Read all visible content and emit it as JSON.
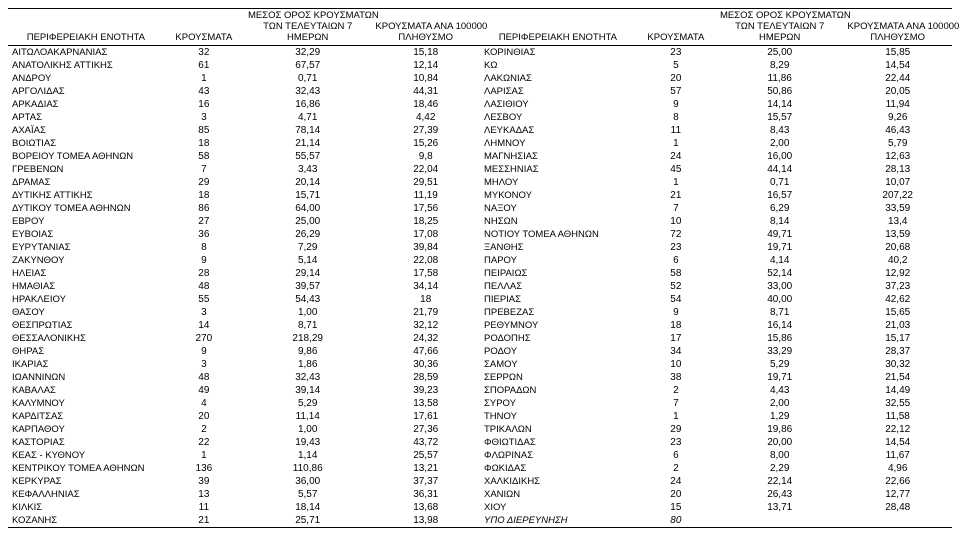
{
  "headers": {
    "region": "ΠΕΡΙΦΕΡΕΙΑΚΗ ΕΝΟΤΗΤΑ",
    "cases": "ΚΡΟΥΣΜΑΤΑ",
    "avg7": "ΜΕΣΟΣ ΟΡΟΣ ΚΡΟΥΣΜΑΤΩΝ ΤΩΝ ΤΕΛΕΥΤΑΙΩΝ 7 ΗΜΕΡΩΝ",
    "per100k": "ΚΡΟΥΣΜΑΤΑ ΑΝΑ 100000 ΠΛΗΘΥΣΜΟ"
  },
  "left": [
    {
      "n": "ΑΙΤΩΛΟΑΚΑΡΝΑΝΙΑΣ",
      "c": "32",
      "a": "32,29",
      "p": "15,18"
    },
    {
      "n": "ΑΝΑΤΟΛΙΚΗΣ ΑΤΤΙΚΗΣ",
      "c": "61",
      "a": "67,57",
      "p": "12,14"
    },
    {
      "n": "ΑΝΔΡΟΥ",
      "c": "1",
      "a": "0,71",
      "p": "10,84"
    },
    {
      "n": "ΑΡΓΟΛΙΔΑΣ",
      "c": "43",
      "a": "32,43",
      "p": "44,31"
    },
    {
      "n": "ΑΡΚΑΔΙΑΣ",
      "c": "16",
      "a": "16,86",
      "p": "18,46"
    },
    {
      "n": "ΑΡΤΑΣ",
      "c": "3",
      "a": "4,71",
      "p": "4,42"
    },
    {
      "n": "ΑΧΑΪΑΣ",
      "c": "85",
      "a": "78,14",
      "p": "27,39"
    },
    {
      "n": "ΒΟΙΩΤΙΑΣ",
      "c": "18",
      "a": "21,14",
      "p": "15,26"
    },
    {
      "n": "ΒΟΡΕΙΟΥ ΤΟΜΕΑ ΑΘΗΝΩΝ",
      "c": "58",
      "a": "55,57",
      "p": "9,8"
    },
    {
      "n": "ΓΡΕΒΕΝΩΝ",
      "c": "7",
      "a": "3,43",
      "p": "22,04"
    },
    {
      "n": "ΔΡΑΜΑΣ",
      "c": "29",
      "a": "20,14",
      "p": "29,51"
    },
    {
      "n": "ΔΥΤΙΚΗΣ ΑΤΤΙΚΗΣ",
      "c": "18",
      "a": "15,71",
      "p": "11,19"
    },
    {
      "n": "ΔΥΤΙΚΟΥ ΤΟΜΕΑ ΑΘΗΝΩΝ",
      "c": "86",
      "a": "64,00",
      "p": "17,56"
    },
    {
      "n": "ΕΒΡΟΥ",
      "c": "27",
      "a": "25,00",
      "p": "18,25"
    },
    {
      "n": "ΕΥΒΟΙΑΣ",
      "c": "36",
      "a": "26,29",
      "p": "17,08"
    },
    {
      "n": "ΕΥΡΥΤΑΝΙΑΣ",
      "c": "8",
      "a": "7,29",
      "p": "39,84"
    },
    {
      "n": "ΖΑΚΥΝΘΟΥ",
      "c": "9",
      "a": "5,14",
      "p": "22,08"
    },
    {
      "n": "ΗΛΕΙΑΣ",
      "c": "28",
      "a": "29,14",
      "p": "17,58"
    },
    {
      "n": "ΗΜΑΘΙΑΣ",
      "c": "48",
      "a": "39,57",
      "p": "34,14"
    },
    {
      "n": "ΗΡΑΚΛΕΙΟΥ",
      "c": "55",
      "a": "54,43",
      "p": "18"
    },
    {
      "n": "ΘΑΣΟΥ",
      "c": "3",
      "a": "1,00",
      "p": "21,79"
    },
    {
      "n": "ΘΕΣΠΡΩΤΙΑΣ",
      "c": "14",
      "a": "8,71",
      "p": "32,12"
    },
    {
      "n": "ΘΕΣΣΑΛΟΝΙΚΗΣ",
      "c": "270",
      "a": "218,29",
      "p": "24,32"
    },
    {
      "n": "ΘΗΡΑΣ",
      "c": "9",
      "a": "9,86",
      "p": "47,66"
    },
    {
      "n": "ΙΚΑΡΙΑΣ",
      "c": "3",
      "a": "1,86",
      "p": "30,36"
    },
    {
      "n": "ΙΩΑΝΝΙΝΩΝ",
      "c": "48",
      "a": "32,43",
      "p": "28,59"
    },
    {
      "n": "ΚΑΒΑΛΑΣ",
      "c": "49",
      "a": "39,14",
      "p": "39,23"
    },
    {
      "n": "ΚΑΛΥΜΝΟΥ",
      "c": "4",
      "a": "5,29",
      "p": "13,58"
    },
    {
      "n": "ΚΑΡΔΙΤΣΑΣ",
      "c": "20",
      "a": "11,14",
      "p": "17,61"
    },
    {
      "n": "ΚΑΡΠΑΘΟΥ",
      "c": "2",
      "a": "1,00",
      "p": "27,36"
    },
    {
      "n": "ΚΑΣΤΟΡΙΑΣ",
      "c": "22",
      "a": "19,43",
      "p": "43,72"
    },
    {
      "n": "ΚΕΑΣ - ΚΥΘΝΟΥ",
      "c": "1",
      "a": "1,14",
      "p": "25,57"
    },
    {
      "n": "ΚΕΝΤΡΙΚΟΥ ΤΟΜΕΑ ΑΘΗΝΩΝ",
      "c": "136",
      "a": "110,86",
      "p": "13,21"
    },
    {
      "n": "ΚΕΡΚΥΡΑΣ",
      "c": "39",
      "a": "36,00",
      "p": "37,37"
    },
    {
      "n": "ΚΕΦΑΛΛΗΝΙΑΣ",
      "c": "13",
      "a": "5,57",
      "p": "36,31"
    },
    {
      "n": "ΚΙΛΚΙΣ",
      "c": "11",
      "a": "18,14",
      "p": "13,68"
    },
    {
      "n": "ΚΟΖΑΝΗΣ",
      "c": "21",
      "a": "25,71",
      "p": "13,98"
    }
  ],
  "right": [
    {
      "n": "ΚΟΡΙΝΘΙΑΣ",
      "c": "23",
      "a": "25,00",
      "p": "15,85"
    },
    {
      "n": "ΚΩ",
      "c": "5",
      "a": "8,29",
      "p": "14,54"
    },
    {
      "n": "ΛΑΚΩΝΙΑΣ",
      "c": "20",
      "a": "11,86",
      "p": "22,44"
    },
    {
      "n": "ΛΑΡΙΣΑΣ",
      "c": "57",
      "a": "50,86",
      "p": "20,05"
    },
    {
      "n": "ΛΑΣΙΘΙΟΥ",
      "c": "9",
      "a": "14,14",
      "p": "11,94"
    },
    {
      "n": "ΛΕΣΒΟΥ",
      "c": "8",
      "a": "15,57",
      "p": "9,26"
    },
    {
      "n": "ΛΕΥΚΑΔΑΣ",
      "c": "11",
      "a": "8,43",
      "p": "46,43"
    },
    {
      "n": "ΛΗΜΝΟΥ",
      "c": "1",
      "a": "2,00",
      "p": "5,79"
    },
    {
      "n": "ΜΑΓΝΗΣΙΑΣ",
      "c": "24",
      "a": "16,00",
      "p": "12,63"
    },
    {
      "n": "ΜΕΣΣΗΝΙΑΣ",
      "c": "45",
      "a": "44,14",
      "p": "28,13"
    },
    {
      "n": "ΜΗΛΟΥ",
      "c": "1",
      "a": "0,71",
      "p": "10,07"
    },
    {
      "n": "ΜΥΚΟΝΟΥ",
      "c": "21",
      "a": "16,57",
      "p": "207,22"
    },
    {
      "n": "ΝΑΞΟΥ",
      "c": "7",
      "a": "6,29",
      "p": "33,59"
    },
    {
      "n": "ΝΗΣΩΝ",
      "c": "10",
      "a": "8,14",
      "p": "13,4"
    },
    {
      "n": "ΝΟΤΙΟΥ ΤΟΜΕΑ ΑΘΗΝΩΝ",
      "c": "72",
      "a": "49,71",
      "p": "13,59"
    },
    {
      "n": "ΞΑΝΘΗΣ",
      "c": "23",
      "a": "19,71",
      "p": "20,68"
    },
    {
      "n": "ΠΑΡΟΥ",
      "c": "6",
      "a": "4,14",
      "p": "40,2"
    },
    {
      "n": "ΠΕΙΡΑΙΩΣ",
      "c": "58",
      "a": "52,14",
      "p": "12,92"
    },
    {
      "n": "ΠΕΛΛΑΣ",
      "c": "52",
      "a": "33,00",
      "p": "37,23"
    },
    {
      "n": "ΠΙΕΡΙΑΣ",
      "c": "54",
      "a": "40,00",
      "p": "42,62"
    },
    {
      "n": "ΠΡΕΒΕΖΑΣ",
      "c": "9",
      "a": "8,71",
      "p": "15,65"
    },
    {
      "n": "ΡΕΘΥΜΝΟΥ",
      "c": "18",
      "a": "16,14",
      "p": "21,03"
    },
    {
      "n": "ΡΟΔΟΠΗΣ",
      "c": "17",
      "a": "15,86",
      "p": "15,17"
    },
    {
      "n": "ΡΟΔΟΥ",
      "c": "34",
      "a": "33,29",
      "p": "28,37"
    },
    {
      "n": "ΣΑΜΟΥ",
      "c": "10",
      "a": "5,29",
      "p": "30,32"
    },
    {
      "n": "ΣΕΡΡΩΝ",
      "c": "38",
      "a": "19,71",
      "p": "21,54"
    },
    {
      "n": "ΣΠΟΡΑΔΩΝ",
      "c": "2",
      "a": "4,43",
      "p": "14,49"
    },
    {
      "n": "ΣΥΡΟΥ",
      "c": "7",
      "a": "2,00",
      "p": "32,55"
    },
    {
      "n": "ΤΗΝΟΥ",
      "c": "1",
      "a": "1,29",
      "p": "11,58"
    },
    {
      "n": "ΤΡΙΚΑΛΩΝ",
      "c": "29",
      "a": "19,86",
      "p": "22,12"
    },
    {
      "n": "ΦΘΙΩΤΙΔΑΣ",
      "c": "23",
      "a": "20,00",
      "p": "14,54"
    },
    {
      "n": "ΦΛΩΡΙΝΑΣ",
      "c": "6",
      "a": "8,00",
      "p": "11,67"
    },
    {
      "n": "ΦΩΚΙΔΑΣ",
      "c": "2",
      "a": "2,29",
      "p": "4,96"
    },
    {
      "n": "ΧΑΛΚΙΔΙΚΗΣ",
      "c": "24",
      "a": "22,14",
      "p": "22,66"
    },
    {
      "n": "ΧΑΝΙΩΝ",
      "c": "20",
      "a": "26,43",
      "p": "12,77"
    },
    {
      "n": "ΧΙΟΥ",
      "c": "15",
      "a": "13,71",
      "p": "28,48"
    },
    {
      "n": "ΥΠΟ ΔΙΕΡΕΥΝΗΣΗ",
      "c": "80",
      "a": "",
      "p": "",
      "italic": true
    }
  ]
}
